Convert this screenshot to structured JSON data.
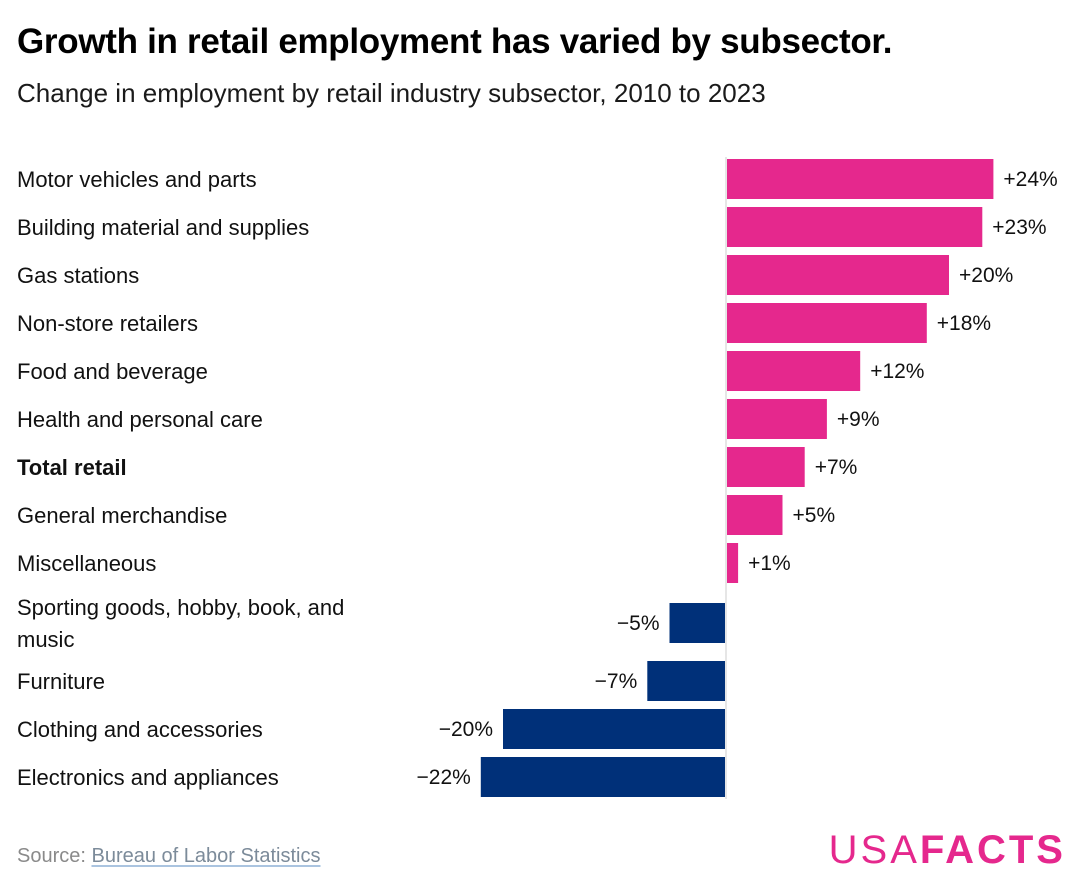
{
  "header": {
    "title": "Growth in retail employment has varied by subsector.",
    "subtitle": "Change in employment by retail industry subsector, 2010 to 2023"
  },
  "chart_data": {
    "type": "bar",
    "orientation": "horizontal",
    "categories": [
      [
        "Motor vehicles and parts"
      ],
      [
        "Building material and supplies"
      ],
      [
        "Gas stations"
      ],
      [
        "Non-store retailers"
      ],
      [
        "Food and beverage"
      ],
      [
        "Health and personal care"
      ],
      [
        "Total retail"
      ],
      [
        "General merchandise"
      ],
      [
        "Miscellaneous"
      ],
      [
        "Sporting goods, hobby, book, and",
        "music"
      ],
      [
        "Furniture"
      ],
      [
        "Clothing and accessories"
      ],
      [
        "Electronics and appliances"
      ]
    ],
    "values": [
      24,
      23,
      20,
      18,
      12,
      9,
      7,
      5,
      1,
      -5,
      -7,
      -20,
      -22
    ],
    "value_labels": [
      "+24%",
      "+23%",
      "+20%",
      "+18%",
      "+12%",
      "+9%",
      "+7%",
      "+5%",
      "+1%",
      "−5%",
      "−7%",
      "−20%",
      "−22%"
    ],
    "bold_categories": [
      "Total retail"
    ],
    "xlim": [
      -22,
      24
    ],
    "colors": {
      "positive": "#e5288d",
      "negative": "#003079",
      "axis": "#cccccc"
    }
  },
  "footer": {
    "source_prefix": "Source: ",
    "source_link": "Bureau of Labor Statistics",
    "logo_usa": "USA",
    "logo_facts": "FACTS"
  }
}
